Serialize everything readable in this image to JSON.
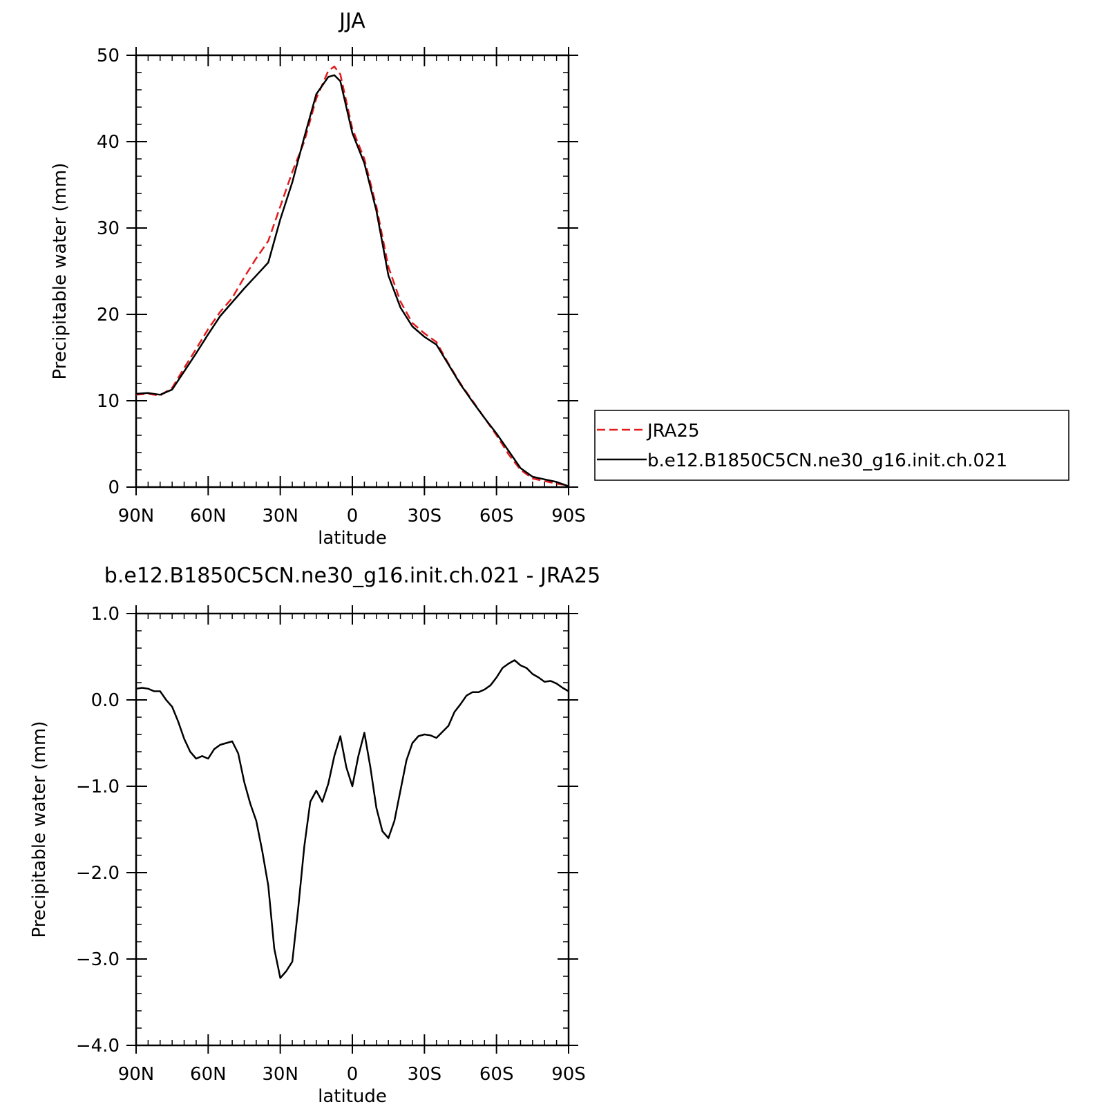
{
  "chart_data": [
    {
      "type": "line",
      "title": "JJA",
      "xlabel": "latitude",
      "ylabel": "Precipitable water (mm)",
      "xlim": [
        90,
        -90
      ],
      "ylim": [
        0,
        50
      ],
      "x_ticks": [
        {
          "value": 90,
          "label": "90N"
        },
        {
          "value": 60,
          "label": "60N"
        },
        {
          "value": 30,
          "label": "30N"
        },
        {
          "value": 0,
          "label": "0"
        },
        {
          "value": -30,
          "label": "30S"
        },
        {
          "value": -60,
          "label": "60S"
        },
        {
          "value": -90,
          "label": "90S"
        }
      ],
      "y_ticks": [
        {
          "value": 0,
          "label": "0"
        },
        {
          "value": 10,
          "label": "10"
        },
        {
          "value": 20,
          "label": "20"
        },
        {
          "value": 30,
          "label": "30"
        },
        {
          "value": 40,
          "label": "40"
        },
        {
          "value": 50,
          "label": "50"
        }
      ],
      "grid": false,
      "legend_position": "right",
      "series": [
        {
          "name": "JRA25",
          "color": "#e41a1c",
          "dash": "dashed",
          "x": [
            90,
            85,
            80,
            75,
            70,
            65,
            60,
            55,
            50,
            45,
            40,
            35,
            30,
            25,
            20,
            15,
            10,
            7.5,
            5,
            0,
            -5,
            -10,
            -15,
            -20,
            -25,
            -30,
            -35,
            -40,
            -45,
            -50,
            -55,
            -60,
            -65,
            -70,
            -75,
            -80,
            -85,
            -90
          ],
          "y": [
            10.7,
            10.8,
            10.6,
            11.5,
            13.8,
            16.0,
            18.3,
            20.3,
            21.9,
            24.3,
            26.5,
            28.5,
            32.5,
            36.5,
            40.0,
            45.0,
            48.2,
            48.7,
            47.8,
            41.5,
            38.0,
            32.5,
            25.5,
            21.5,
            19.0,
            17.8,
            16.8,
            14.3,
            12.0,
            10.0,
            8.0,
            6.0,
            3.8,
            2.0,
            1.0,
            0.7,
            0.4,
            0.2
          ]
        },
        {
          "name": "b.e12.B1850C5CN.ne30_g16.init.ch.021",
          "color": "#000000",
          "dash": "solid",
          "x": [
            90,
            85,
            80,
            75,
            70,
            65,
            60,
            55,
            50,
            45,
            40,
            35,
            30,
            25,
            20,
            15,
            10,
            7.5,
            5,
            0,
            -5,
            -10,
            -15,
            -20,
            -25,
            -30,
            -35,
            -40,
            -45,
            -50,
            -55,
            -60,
            -65,
            -70,
            -75,
            -80,
            -85,
            -90
          ],
          "y": [
            10.8,
            10.9,
            10.7,
            11.3,
            13.4,
            15.5,
            17.7,
            19.8,
            21.4,
            23.0,
            24.5,
            26.0,
            31.0,
            35.3,
            40.5,
            45.5,
            47.5,
            47.7,
            47.0,
            41.0,
            37.5,
            32.0,
            24.5,
            20.8,
            18.6,
            17.4,
            16.5,
            14.2,
            11.9,
            9.9,
            8.0,
            6.2,
            4.2,
            2.2,
            1.2,
            0.9,
            0.6,
            0.1
          ]
        }
      ]
    },
    {
      "type": "line",
      "title": "b.e12.B1850C5CN.ne30_g16.init.ch.021 - JRA25",
      "xlabel": "latitude",
      "ylabel": "Precipitable water (mm)",
      "xlim": [
        90,
        -90
      ],
      "ylim": [
        -4.0,
        1.0
      ],
      "x_ticks": [
        {
          "value": 90,
          "label": "90N"
        },
        {
          "value": 60,
          "label": "60N"
        },
        {
          "value": 30,
          "label": "30N"
        },
        {
          "value": 0,
          "label": "0"
        },
        {
          "value": -30,
          "label": "30S"
        },
        {
          "value": -60,
          "label": "60S"
        },
        {
          "value": -90,
          "label": "90S"
        }
      ],
      "y_ticks": [
        {
          "value": -4.0,
          "label": "−4.0"
        },
        {
          "value": -3.0,
          "label": "−3.0"
        },
        {
          "value": -2.0,
          "label": "−2.0"
        },
        {
          "value": -1.0,
          "label": "−1.0"
        },
        {
          "value": 0.0,
          "label": "0.0"
        },
        {
          "value": 1.0,
          "label": "1.0"
        }
      ],
      "grid": false,
      "series": [
        {
          "color": "#000000",
          "dash": "solid",
          "x": [
            90,
            87.5,
            85,
            82.5,
            80,
            77.5,
            75,
            72.5,
            70,
            67.5,
            65,
            62.5,
            60,
            57.5,
            55,
            52.5,
            50,
            47.5,
            45,
            42.5,
            40,
            37.5,
            35,
            32.5,
            30,
            27.5,
            25,
            22.5,
            20,
            17.5,
            15,
            12.5,
            10,
            7.5,
            5,
            2.5,
            0,
            -2.5,
            -5,
            -7.5,
            -10,
            -12.5,
            -15,
            -17.5,
            -20,
            -22.5,
            -25,
            -27.5,
            -30,
            -32.5,
            -35,
            -37.5,
            -40,
            -42.5,
            -45,
            -47.5,
            -50,
            -52.5,
            -55,
            -57.5,
            -60,
            -62.5,
            -65,
            -67.5,
            -70,
            -72.5,
            -75,
            -77.5,
            -80,
            -82.5,
            -85,
            -87.5,
            -90
          ],
          "y": [
            0.13,
            0.14,
            0.13,
            0.1,
            0.1,
            0.0,
            -0.08,
            -0.25,
            -0.45,
            -0.6,
            -0.68,
            -0.65,
            -0.68,
            -0.57,
            -0.52,
            -0.5,
            -0.48,
            -0.62,
            -0.95,
            -1.2,
            -1.4,
            -1.75,
            -2.15,
            -2.88,
            -3.22,
            -3.14,
            -3.03,
            -2.4,
            -1.7,
            -1.18,
            -1.05,
            -1.18,
            -0.97,
            -0.65,
            -0.42,
            -0.78,
            -1.0,
            -0.65,
            -0.38,
            -0.78,
            -1.25,
            -1.52,
            -1.6,
            -1.4,
            -1.05,
            -0.7,
            -0.5,
            -0.42,
            -0.4,
            -0.41,
            -0.44,
            -0.37,
            -0.3,
            -0.14,
            -0.05,
            0.05,
            0.09,
            0.09,
            0.12,
            0.17,
            0.26,
            0.37,
            0.42,
            0.46,
            0.4,
            0.37,
            0.3,
            0.26,
            0.21,
            0.22,
            0.19,
            0.14,
            0.1
          ]
        }
      ]
    }
  ]
}
